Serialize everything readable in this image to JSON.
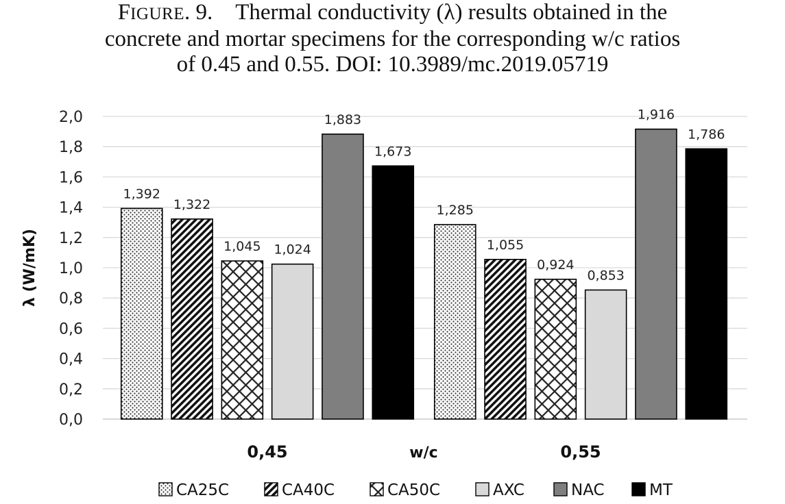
{
  "figure": {
    "label_cap": "F",
    "label_rest": "IGURE",
    "label_num": ". 9.",
    "caption_line1": "Thermal conductivity (λ) results obtained in the",
    "caption_line2": "concrete and mortar specimens for the corresponding w/c ratios",
    "caption_line3": "of 0.45 and 0.55. DOI: 10.3989/mc.2019.05719"
  },
  "chart_data": {
    "type": "bar",
    "categories": [
      "0,45",
      "0,55"
    ],
    "xlabel": "w/c",
    "ylabel": "λ (W/mK)",
    "ylim": [
      0,
      2.0
    ],
    "yticks": [
      0.0,
      0.2,
      0.4,
      0.6,
      0.8,
      1.0,
      1.2,
      1.4,
      1.6,
      1.8,
      2.0
    ],
    "ytick_labels": [
      "0,0",
      "0,2",
      "0,4",
      "0,6",
      "0,8",
      "1,0",
      "1,2",
      "1,4",
      "1,6",
      "1,8",
      "2,0"
    ],
    "grid": true,
    "legend_position": "bottom",
    "series": [
      {
        "name": "CA25C",
        "values": [
          1.392,
          1.285
        ],
        "labels": [
          "1,392",
          "1,285"
        ],
        "pattern": "dots"
      },
      {
        "name": "CA40C",
        "values": [
          1.322,
          1.055
        ],
        "labels": [
          "1,322",
          "1,055"
        ],
        "pattern": "diagonal"
      },
      {
        "name": "CA50C",
        "values": [
          1.045,
          0.924
        ],
        "labels": [
          "1,045",
          "0,924"
        ],
        "pattern": "crosshatch"
      },
      {
        "name": "AXC",
        "values": [
          1.024,
          0.853
        ],
        "labels": [
          "1,024",
          "0,853"
        ],
        "pattern": "light",
        "color": "#d9d9d9"
      },
      {
        "name": "NAC",
        "values": [
          1.883,
          1.916
        ],
        "labels": [
          "1,883",
          "1,916"
        ],
        "pattern": "mid",
        "color": "#7f7f7f"
      },
      {
        "name": "MT",
        "values": [
          1.673,
          1.786
        ],
        "labels": [
          "1,673",
          "1,786"
        ],
        "pattern": "dark",
        "color": "#000000"
      }
    ]
  }
}
